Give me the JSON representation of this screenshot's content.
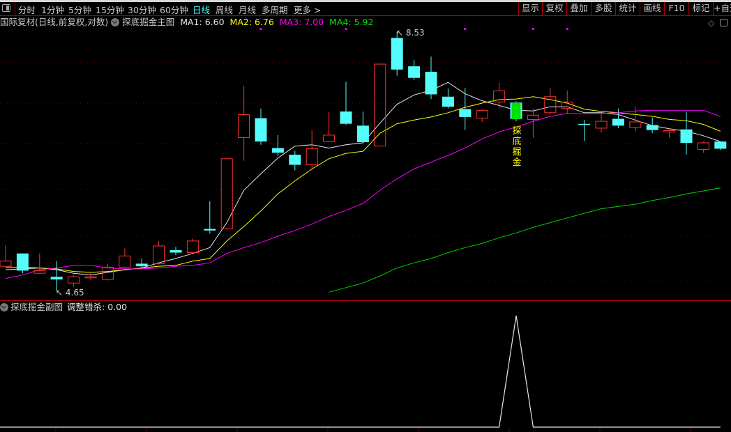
{
  "toolbar": {
    "periods": [
      "分时",
      "1分钟",
      "5分钟",
      "15分钟",
      "30分钟",
      "60分钟",
      "日线",
      "周线",
      "月线",
      "多周期",
      "更多 >"
    ],
    "active_period": "日线",
    "buttons": [
      "显示",
      "复权",
      "叠加",
      "多股",
      "统计",
      "画线",
      "F10",
      "标记",
      "+自选"
    ]
  },
  "legend": {
    "instrument": "国际复材(日线,前复权,对数)",
    "indicator": "探底掘金主图",
    "ma": [
      {
        "label": "MA1: 6.60",
        "color": "#e8e8e8"
      },
      {
        "label": "MA2: 6.76",
        "color": "#ffff00"
      },
      {
        "label": "MA3: 7.00",
        "color": "#ff00ff"
      },
      {
        "label": "MA4: 5.92",
        "color": "#00e000"
      }
    ]
  },
  "sub_legend": {
    "indicator": "探底掘金副图",
    "value_label": "调整错杀: 0.00"
  },
  "chart_data": [
    {
      "type": "candlestick",
      "scale": "log",
      "ylim": [
        4.56,
        8.61
      ],
      "grid": true,
      "colors": {
        "up": "#ff3232",
        "down": "#54fcfc",
        "signal": "#00e000",
        "ma1": "#e8e8e8",
        "ma2": "#ffff00",
        "ma3": "#ff00ff",
        "ma4": "#00d000",
        "marker": "#ff00ff"
      },
      "high_label": "8.53",
      "low_label": "4.65",
      "high_index": 23,
      "low_index": 3,
      "signal_text": "探底掘金",
      "signal_index": 30,
      "top_marker_indices": [
        15,
        20,
        27,
        31,
        33
      ],
      "ohlc": [
        [
          4.93,
          5.18,
          4.93,
          4.99
        ],
        [
          5.08,
          5.08,
          4.85,
          4.88
        ],
        [
          4.85,
          5.08,
          4.85,
          4.88
        ],
        [
          4.81,
          4.99,
          4.65,
          4.78
        ],
        [
          4.74,
          4.83,
          4.7,
          4.81
        ],
        [
          4.8,
          4.85,
          4.77,
          4.81
        ],
        [
          4.78,
          4.96,
          4.77,
          4.92
        ],
        [
          4.92,
          5.14,
          4.91,
          5.05
        ],
        [
          4.96,
          5.02,
          4.91,
          4.93
        ],
        [
          4.96,
          5.23,
          4.95,
          5.17
        ],
        [
          5.12,
          5.16,
          5.06,
          5.09
        ],
        [
          5.09,
          5.26,
          5.08,
          5.23
        ],
        [
          5.38,
          5.74,
          5.32,
          5.36
        ],
        [
          5.38,
          6.34,
          5.37,
          6.34
        ],
        [
          6.66,
          7.52,
          6.31,
          7.03
        ],
        [
          6.97,
          7.13,
          6.55,
          6.6
        ],
        [
          6.5,
          6.7,
          6.38,
          6.43
        ],
        [
          6.4,
          6.46,
          6.17,
          6.25
        ],
        [
          6.25,
          6.78,
          6.2,
          6.49
        ],
        [
          6.6,
          7.07,
          6.59,
          6.7
        ],
        [
          7.08,
          7.59,
          6.86,
          6.88
        ],
        [
          6.85,
          7.08,
          6.59,
          6.59
        ],
        [
          6.53,
          7.91,
          6.53,
          7.91
        ],
        [
          8.41,
          8.53,
          7.7,
          7.81
        ],
        [
          7.87,
          7.99,
          7.62,
          7.66
        ],
        [
          7.77,
          8.05,
          7.29,
          7.37
        ],
        [
          7.33,
          7.47,
          7.13,
          7.16
        ],
        [
          7.12,
          7.48,
          6.78,
          6.99
        ],
        [
          6.97,
          7.12,
          6.91,
          7.1
        ],
        [
          7.24,
          7.57,
          7.13,
          7.43
        ],
        [
          7.23,
          7.25,
          6.92,
          6.96
        ],
        [
          6.95,
          7.13,
          6.66,
          7.02
        ],
        [
          7.06,
          7.48,
          7.03,
          7.33
        ],
        [
          7.13,
          7.44,
          7.04,
          7.24
        ],
        [
          6.87,
          6.94,
          6.61,
          6.86
        ],
        [
          6.81,
          7.05,
          6.74,
          6.92
        ],
        [
          6.96,
          7.13,
          6.81,
          6.85
        ],
        [
          6.82,
          7.16,
          6.76,
          6.91
        ],
        [
          6.86,
          6.98,
          6.73,
          6.78
        ],
        [
          6.75,
          6.81,
          6.66,
          6.77
        ],
        [
          6.79,
          7.08,
          6.4,
          6.58
        ],
        [
          6.48,
          6.6,
          6.43,
          6.58
        ],
        [
          6.6,
          6.6,
          6.47,
          6.49
        ]
      ],
      "series": [
        {
          "name": "MA1",
          "values": [
            4.89,
            4.9,
            4.91,
            4.89,
            4.85,
            4.83,
            4.86,
            4.89,
            4.91,
            4.97,
            5.02,
            5.08,
            5.15,
            5.46,
            5.89,
            6.12,
            6.35,
            6.53,
            6.55,
            6.5,
            6.55,
            6.58,
            6.89,
            7.2,
            7.36,
            7.44,
            7.58,
            7.38,
            7.26,
            7.18,
            7.1,
            7.09,
            7.16,
            7.16,
            7.06,
            7.06,
            7.03,
            6.94,
            6.85,
            6.8,
            6.76,
            6.69,
            6.6
          ]
        },
        {
          "name": "MA2",
          "values": [
            4.92,
            4.92,
            4.91,
            4.9,
            4.87,
            4.86,
            4.87,
            4.89,
            4.91,
            4.93,
            4.94,
            4.99,
            5.02,
            5.23,
            5.41,
            5.61,
            5.84,
            6.02,
            6.19,
            6.34,
            6.42,
            6.45,
            6.73,
            6.88,
            6.94,
            6.99,
            7.06,
            7.15,
            7.22,
            7.28,
            7.29,
            7.33,
            7.28,
            7.22,
            7.12,
            7.08,
            7.06,
            7.03,
            7.0,
            6.95,
            6.93,
            6.87,
            6.76
          ]
        },
        {
          "name": "MA3",
          "values": [
            4.79,
            4.83,
            4.89,
            4.91,
            4.94,
            4.94,
            4.91,
            4.9,
            4.9,
            4.91,
            4.93,
            4.94,
            4.97,
            5.08,
            5.15,
            5.21,
            5.29,
            5.36,
            5.44,
            5.54,
            5.62,
            5.71,
            5.89,
            6.05,
            6.19,
            6.29,
            6.39,
            6.5,
            6.64,
            6.75,
            6.83,
            6.92,
            7.0,
            7.05,
            7.04,
            7.05,
            7.06,
            7.09,
            7.1,
            7.1,
            7.1,
            7.1,
            7.0
          ]
        },
        {
          "name": "MA4",
          "values": [
            null,
            null,
            null,
            null,
            null,
            null,
            null,
            null,
            null,
            null,
            null,
            null,
            null,
            null,
            null,
            null,
            null,
            null,
            null,
            4.64,
            4.69,
            4.74,
            4.82,
            4.91,
            4.97,
            5.02,
            5.09,
            5.15,
            5.2,
            5.27,
            5.33,
            5.4,
            5.46,
            5.52,
            5.58,
            5.64,
            5.67,
            5.7,
            5.75,
            5.79,
            5.84,
            5.88,
            5.92
          ]
        }
      ]
    },
    {
      "type": "line",
      "ylim": [
        0,
        1
      ],
      "grid": true,
      "color": "#e8e8e8",
      "series": [
        {
          "name": "调整错杀",
          "values": [
            0,
            0,
            0,
            0,
            0,
            0,
            0,
            0,
            0,
            0,
            0,
            0,
            0,
            0,
            0,
            0,
            0,
            0,
            0,
            0,
            0,
            0,
            0,
            0,
            0,
            0,
            0,
            0,
            0,
            0,
            1,
            0,
            0,
            0,
            0,
            0,
            0,
            0,
            0,
            0,
            0,
            0,
            0
          ]
        }
      ]
    }
  ]
}
